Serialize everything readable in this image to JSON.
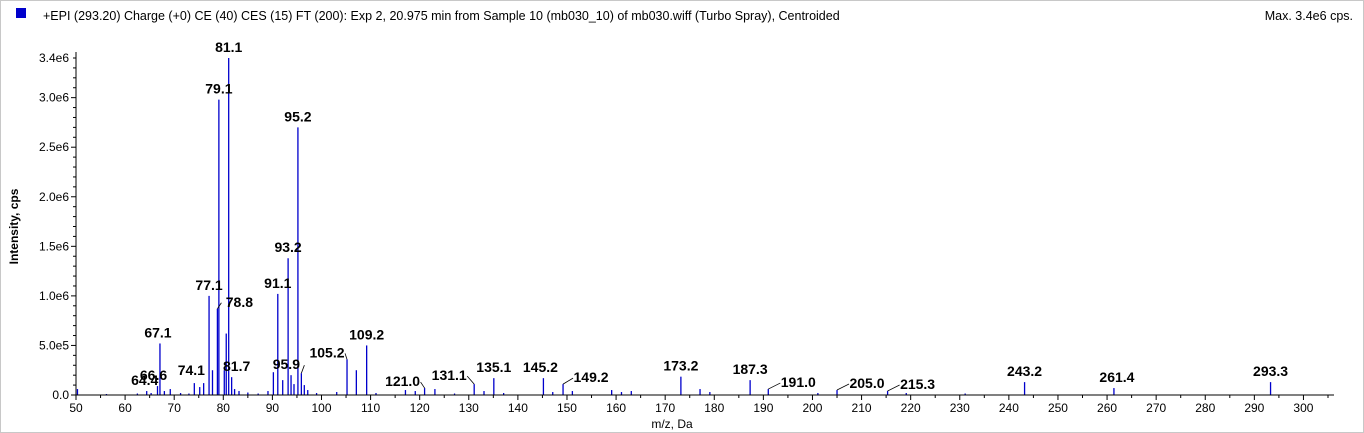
{
  "header": {
    "title": "+EPI (293.20) Charge (+0) CE (40) CES (15) FT (200): Exp 2, 20.975 min from Sample 10 (mb030_10) of mb030.wiff (Turbo Spray), Centroided",
    "max_label": "Max. 3.4e6 cps."
  },
  "colors": {
    "peak": "#0000cc",
    "swatch": "#0000cc",
    "axis": "#000000",
    "label_line": "#000000"
  },
  "chart_data": {
    "type": "bar",
    "xlabel": "m/z, Da",
    "ylabel": "Intensity, cps",
    "xlim": [
      50,
      305
    ],
    "ylim": [
      0,
      3400000.0
    ],
    "x_ticks": [
      50,
      60,
      70,
      80,
      90,
      100,
      110,
      120,
      130,
      140,
      150,
      160,
      170,
      180,
      190,
      200,
      210,
      220,
      230,
      240,
      250,
      260,
      270,
      280,
      290,
      300
    ],
    "y_ticks": [
      {
        "v": 0,
        "label": "0.0"
      },
      {
        "v": 500000,
        "label": "5.0e5"
      },
      {
        "v": 1000000,
        "label": "1.0e6"
      },
      {
        "v": 1500000,
        "label": "1.5e6"
      },
      {
        "v": 2000000,
        "label": "2.0e6"
      },
      {
        "v": 2500000,
        "label": "2.5e6"
      },
      {
        "v": 3000000,
        "label": "3.0e6"
      },
      {
        "v": 3400000,
        "label": "3.4e6"
      }
    ],
    "labeled_peaks": [
      {
        "mz": 64.4,
        "intensity": 40000,
        "label": "64.4"
      },
      {
        "mz": 66.6,
        "intensity": 90000,
        "label": "66.6"
      },
      {
        "mz": 67.1,
        "intensity": 520000,
        "label": "67.1"
      },
      {
        "mz": 74.1,
        "intensity": 120000,
        "label": "74.1"
      },
      {
        "mz": 77.1,
        "intensity": 1000000,
        "label": "77.1"
      },
      {
        "mz": 78.8,
        "intensity": 870000,
        "label": "78.8"
      },
      {
        "mz": 79.1,
        "intensity": 2980000,
        "label": "79.1"
      },
      {
        "mz": 81.1,
        "intensity": 3400000,
        "label": "81.1"
      },
      {
        "mz": 81.7,
        "intensity": 180000,
        "label": "81.7"
      },
      {
        "mz": 91.1,
        "intensity": 1020000,
        "label": "91.1"
      },
      {
        "mz": 93.2,
        "intensity": 1380000,
        "label": "93.2"
      },
      {
        "mz": 95.2,
        "intensity": 2700000,
        "label": "95.2"
      },
      {
        "mz": 95.9,
        "intensity": 220000,
        "label": "95.9"
      },
      {
        "mz": 105.2,
        "intensity": 360000,
        "label": "105.2"
      },
      {
        "mz": 109.2,
        "intensity": 500000,
        "label": "109.2"
      },
      {
        "mz": 121.0,
        "intensity": 70000,
        "label": "121.0"
      },
      {
        "mz": 131.1,
        "intensity": 110000,
        "label": "131.1"
      },
      {
        "mz": 135.1,
        "intensity": 170000,
        "label": "135.1"
      },
      {
        "mz": 145.2,
        "intensity": 170000,
        "label": "145.2"
      },
      {
        "mz": 149.2,
        "intensity": 110000,
        "label": "149.2"
      },
      {
        "mz": 173.2,
        "intensity": 185000,
        "label": "173.2"
      },
      {
        "mz": 187.3,
        "intensity": 150000,
        "label": "187.3"
      },
      {
        "mz": 191.0,
        "intensity": 60000,
        "label": "191.0"
      },
      {
        "mz": 205.0,
        "intensity": 50000,
        "label": "205.0"
      },
      {
        "mz": 215.3,
        "intensity": 40000,
        "label": "215.3"
      },
      {
        "mz": 243.2,
        "intensity": 130000,
        "label": "243.2"
      },
      {
        "mz": 261.4,
        "intensity": 70000,
        "label": "261.4"
      },
      {
        "mz": 293.3,
        "intensity": 130000,
        "label": "293.3"
      }
    ],
    "unlabeled_peaks": [
      {
        "mz": 50.3,
        "intensity": 60000
      },
      {
        "mz": 56.2,
        "intensity": 10000
      },
      {
        "mz": 62.5,
        "intensity": 15000
      },
      {
        "mz": 65.3,
        "intensity": 20000
      },
      {
        "mz": 68.0,
        "intensity": 40000
      },
      {
        "mz": 69.2,
        "intensity": 60000
      },
      {
        "mz": 71.3,
        "intensity": 20000
      },
      {
        "mz": 73.0,
        "intensity": 15000
      },
      {
        "mz": 75.2,
        "intensity": 80000
      },
      {
        "mz": 76.0,
        "intensity": 120000
      },
      {
        "mz": 77.8,
        "intensity": 250000
      },
      {
        "mz": 80.2,
        "intensity": 250000
      },
      {
        "mz": 80.6,
        "intensity": 620000
      },
      {
        "mz": 82.3,
        "intensity": 60000
      },
      {
        "mz": 83.2,
        "intensity": 40000
      },
      {
        "mz": 85.0,
        "intensity": 25000
      },
      {
        "mz": 87.1,
        "intensity": 15000
      },
      {
        "mz": 89.1,
        "intensity": 40000
      },
      {
        "mz": 90.2,
        "intensity": 230000
      },
      {
        "mz": 92.1,
        "intensity": 150000
      },
      {
        "mz": 93.8,
        "intensity": 200000
      },
      {
        "mz": 94.4,
        "intensity": 110000
      },
      {
        "mz": 96.5,
        "intensity": 100000
      },
      {
        "mz": 97.2,
        "intensity": 50000
      },
      {
        "mz": 99.0,
        "intensity": 20000
      },
      {
        "mz": 103.1,
        "intensity": 30000
      },
      {
        "mz": 107.1,
        "intensity": 250000
      },
      {
        "mz": 111.1,
        "intensity": 20000
      },
      {
        "mz": 117.1,
        "intensity": 50000
      },
      {
        "mz": 119.1,
        "intensity": 40000
      },
      {
        "mz": 123.1,
        "intensity": 60000
      },
      {
        "mz": 127.1,
        "intensity": 15000
      },
      {
        "mz": 133.1,
        "intensity": 40000
      },
      {
        "mz": 137.1,
        "intensity": 20000
      },
      {
        "mz": 147.1,
        "intensity": 30000
      },
      {
        "mz": 151.1,
        "intensity": 40000
      },
      {
        "mz": 159.1,
        "intensity": 50000
      },
      {
        "mz": 161.1,
        "intensity": 30000
      },
      {
        "mz": 163.1,
        "intensity": 40000
      },
      {
        "mz": 177.1,
        "intensity": 60000
      },
      {
        "mz": 179.1,
        "intensity": 30000
      },
      {
        "mz": 201.1,
        "intensity": 20000
      },
      {
        "mz": 219.1,
        "intensity": 20000
      },
      {
        "mz": 231.1,
        "intensity": 15000
      }
    ]
  }
}
